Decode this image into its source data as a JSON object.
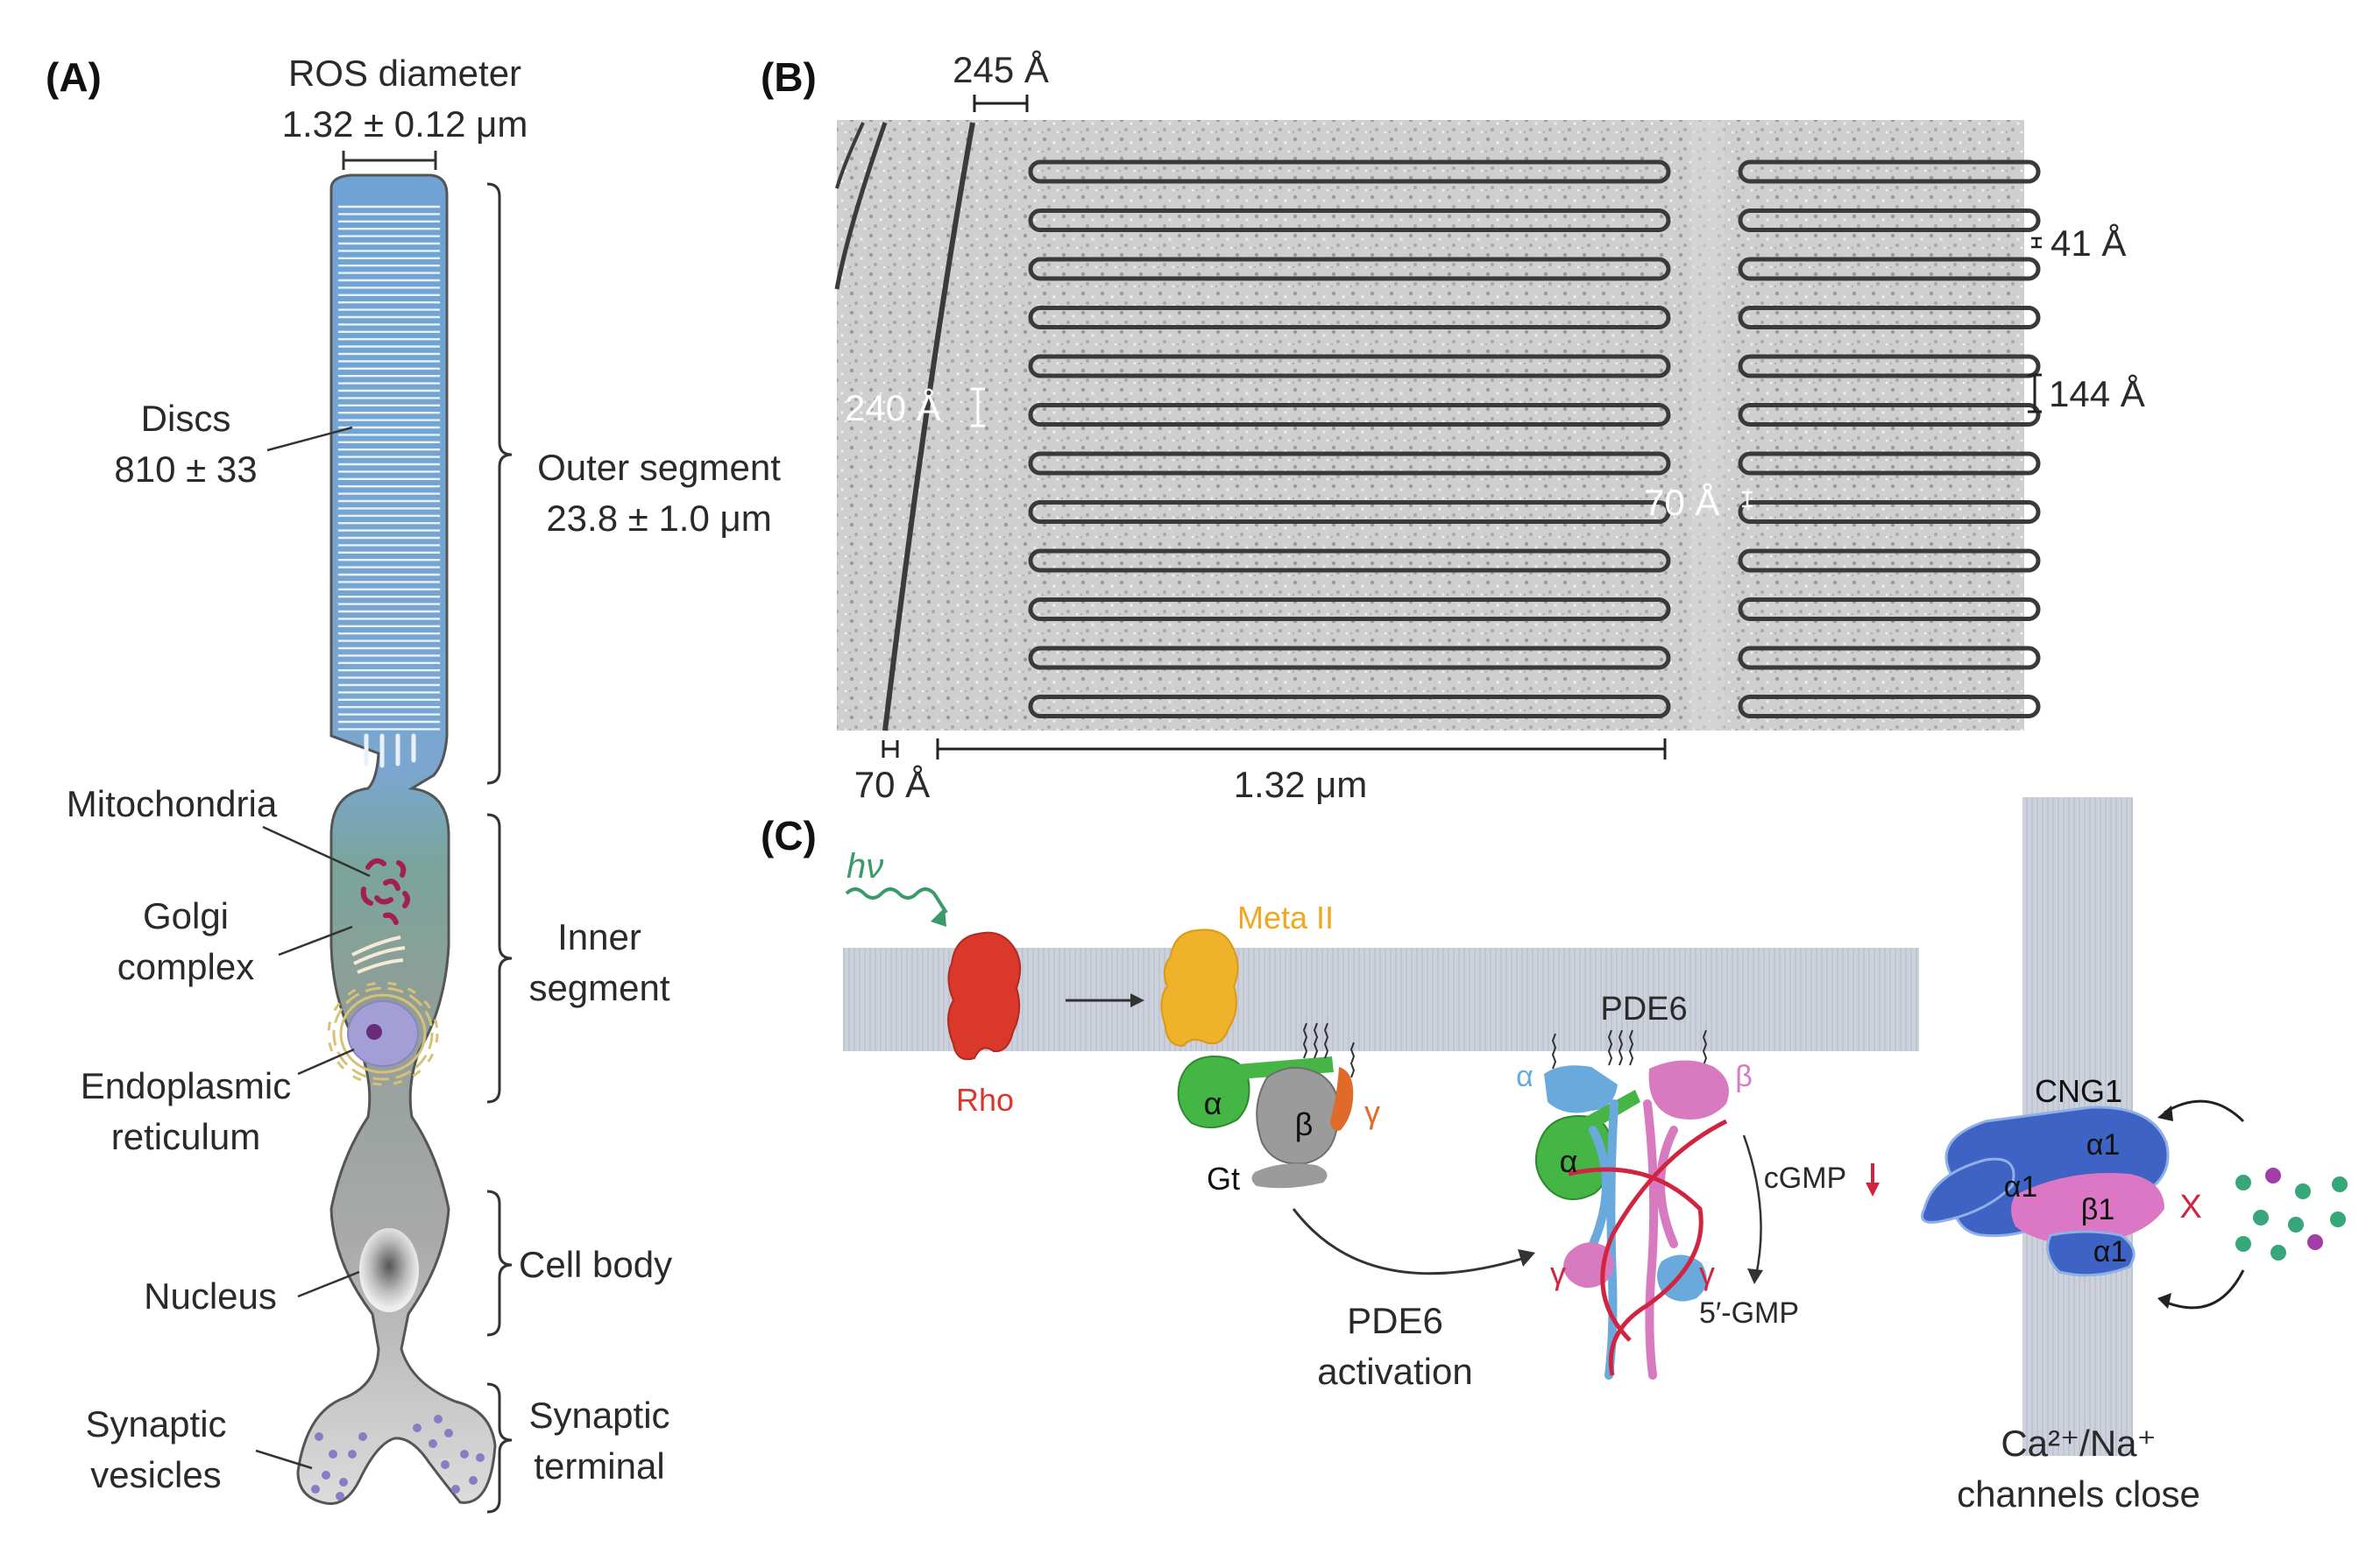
{
  "panels": {
    "a": "(A)",
    "b": "(B)",
    "c": "(C)"
  },
  "panel_a": {
    "ros_title": "ROS diameter",
    "ros_value": "1.32 ± 0.12 μm",
    "discs_label": "Discs",
    "discs_value": "810 ± 33",
    "outer_label": "Outer segment",
    "outer_value": "23.8 ± 1.0 μm",
    "mitochondria": "Mitochondria",
    "golgi_1": "Golgi",
    "golgi_2": "complex",
    "er_1": "Endoplasmic",
    "er_2": "reticulum",
    "inner_1": "Inner",
    "inner_2": "segment",
    "nucleus": "Nucleus",
    "cell_body": "Cell body",
    "vesicles_1": "Synaptic",
    "vesicles_2": "vesicles",
    "terminal_1": "Synaptic",
    "terminal_2": "terminal"
  },
  "panel_b": {
    "top": "245 Å",
    "right_1": "41 Å",
    "right_2": "144 Å",
    "left": "240 Å",
    "mid": "70 Å",
    "bottom_left": "70 Å",
    "bottom_right": "1.32 μm"
  },
  "panel_c": {
    "hv": "hν",
    "meta": "Meta II",
    "rho": "Rho",
    "alpha": "α",
    "beta": "β",
    "gamma": "γ",
    "gt": "Gt",
    "pde6": "PDE6",
    "cgmp": "cGMP",
    "gmp": "5′-GMP",
    "act_1": "PDE6",
    "act_2": "activation",
    "cng": "CNG1",
    "a1": "α1",
    "b1": "β1",
    "x": "X",
    "ion": "Ca²⁺/Na⁺",
    "close": "channels close"
  },
  "colors": {
    "disc_blue": "#6fa3d4",
    "rho_red": "#d9382a",
    "meta_orange": "#f0b22a",
    "gt_green": "#45b545",
    "pde_blue": "#6aa9dc",
    "pde_pink": "#d77ac0",
    "cng_blue": "#3f63c4",
    "cng_pink": "#dc77c6",
    "ion_green": "#37a67a",
    "ion_purple": "#a23ca6"
  }
}
